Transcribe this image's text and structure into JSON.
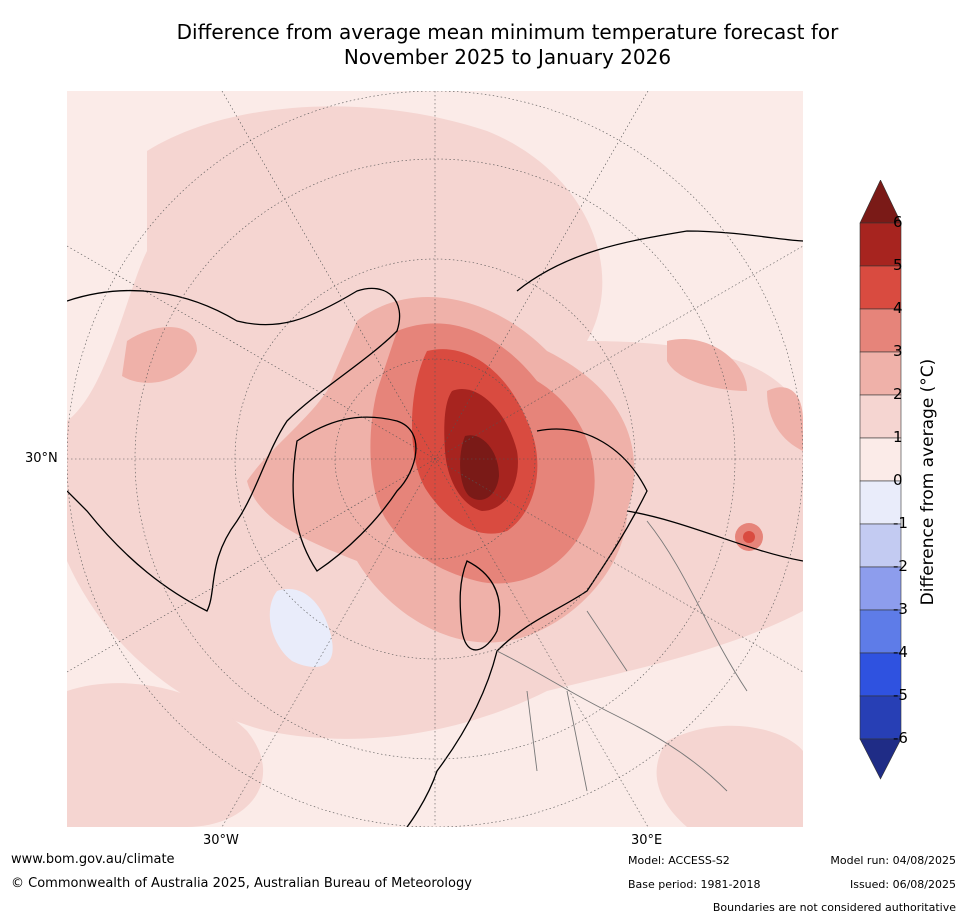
{
  "title_line1": "Difference from average mean minimum temperature forecast for",
  "title_line2": "November 2025 to January 2026",
  "map": {
    "lat_label": "30°N",
    "lon_label_w": "30°W",
    "lon_label_e": "30°E"
  },
  "colorbar": {
    "label": "Difference from average (°C)",
    "ticks": [
      "6",
      "5",
      "4",
      "3",
      "2",
      "1",
      "0",
      "-1",
      "-2",
      "-3",
      "-4",
      "-5",
      "-6"
    ],
    "colors": [
      "#a7241f",
      "#d94b40",
      "#e6847a",
      "#efb1a9",
      "#f5d5d1",
      "#fbebe8",
      "#e9ecfa",
      "#c3cbf2",
      "#8d9ded",
      "#5e7ce8",
      "#2f52e0",
      "#273fb5"
    ],
    "over_color": "#7a1a17",
    "under_color": "#1f2c86"
  },
  "footer": {
    "website": "www.bom.gov.au/climate",
    "copyright": "© Commonwealth of Australia 2025, Australian Bureau of Meteorology",
    "model": "Model: ACCESS-S2",
    "base_period": "Base period: 1981-2018",
    "model_run": "Model run: 04/08/2025",
    "issued": "Issued: 06/08/2025",
    "boundaries": "Boundaries are not considered authoritative"
  }
}
